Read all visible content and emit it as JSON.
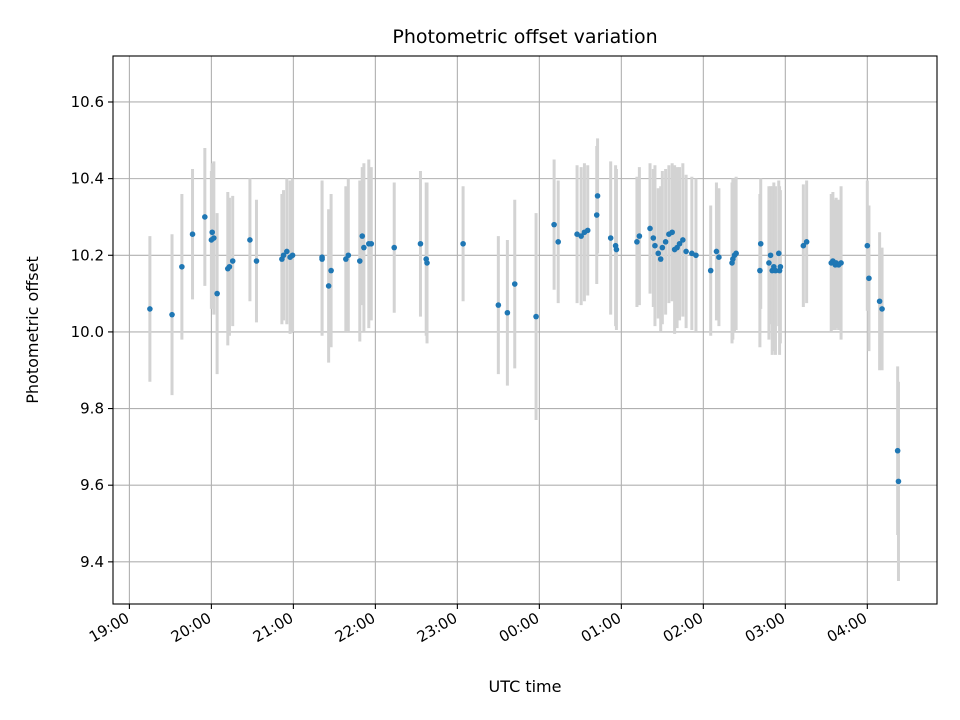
{
  "chart_data": {
    "type": "scatter",
    "title": "Photometric offset variation",
    "xlabel": "UTC time",
    "ylabel": "Photometric offset",
    "x_unit": "hours after 19:00 UTC",
    "xlim": [
      -0.2,
      9.85
    ],
    "ylim": [
      9.29,
      10.72
    ],
    "x_ticks": [
      0,
      1,
      2,
      3,
      4,
      5,
      6,
      7,
      8,
      9
    ],
    "x_tick_labels": [
      "19:00",
      "20:00",
      "21:00",
      "22:00",
      "23:00",
      "00:00",
      "01:00",
      "02:00",
      "03:00",
      "04:00"
    ],
    "y_ticks": [
      9.4,
      9.6,
      9.8,
      10.0,
      10.2,
      10.4,
      10.6
    ],
    "y_tick_labels": [
      "9.4",
      "9.6",
      "9.8",
      "10.0",
      "10.2",
      "10.4",
      "10.6"
    ],
    "grid": true,
    "colors": {
      "points": "#1f77b4",
      "errorbars": "#d3d3d3",
      "grid": "#b0b0b0"
    },
    "series": [
      {
        "x": [
          0.25,
          0.52,
          0.64,
          0.77,
          0.92,
          1.0,
          1.01,
          1.03,
          1.07,
          1.2,
          1.22,
          1.26,
          1.47,
          1.55,
          1.86,
          1.88,
          1.92,
          1.96,
          1.99,
          2.35,
          2.35,
          2.43,
          2.46,
          2.64,
          2.67,
          2.81,
          2.84,
          2.86,
          2.92,
          2.95,
          3.23,
          3.55,
          3.62,
          3.63,
          4.07,
          4.5,
          4.61,
          4.7,
          4.96,
          5.18,
          5.23,
          5.46,
          5.51,
          5.55,
          5.59,
          5.7,
          5.71,
          5.87,
          5.93,
          5.94,
          6.19,
          6.22,
          6.35,
          6.39,
          6.41,
          6.45,
          6.48,
          6.5,
          6.54,
          6.58,
          6.62,
          6.65,
          6.68,
          6.71,
          6.75,
          6.79,
          6.86,
          6.91,
          7.09,
          7.16,
          7.19,
          7.35,
          7.36,
          7.38,
          7.4,
          7.69,
          7.7,
          7.8,
          7.82,
          7.84,
          7.86,
          7.88,
          7.92,
          7.93,
          7.94,
          8.22,
          8.26,
          8.56,
          8.58,
          8.61,
          8.62,
          8.65,
          8.68,
          9.0,
          9.02,
          9.15,
          9.18,
          9.37,
          9.38
        ],
        "y": [
          10.06,
          10.045,
          10.17,
          10.255,
          10.3,
          10.24,
          10.26,
          10.245,
          10.1,
          10.165,
          10.17,
          10.185,
          10.24,
          10.185,
          10.19,
          10.2,
          10.21,
          10.195,
          10.2,
          10.195,
          10.19,
          10.12,
          10.16,
          10.19,
          10.2,
          10.185,
          10.25,
          10.22,
          10.23,
          10.23,
          10.22,
          10.23,
          10.19,
          10.18,
          10.23,
          10.07,
          10.05,
          10.125,
          10.04,
          10.28,
          10.235,
          10.255,
          10.25,
          10.26,
          10.265,
          10.305,
          10.355,
          10.245,
          10.225,
          10.215,
          10.235,
          10.25,
          10.27,
          10.245,
          10.225,
          10.205,
          10.19,
          10.22,
          10.235,
          10.255,
          10.26,
          10.215,
          10.22,
          10.23,
          10.24,
          10.21,
          10.205,
          10.2,
          10.16,
          10.21,
          10.195,
          10.18,
          10.19,
          10.2,
          10.205,
          10.16,
          10.23,
          10.18,
          10.2,
          10.16,
          10.17,
          10.16,
          10.205,
          10.16,
          10.17,
          10.225,
          10.235,
          10.18,
          10.185,
          10.175,
          10.18,
          10.175,
          10.18,
          10.225,
          10.14,
          10.08,
          10.06,
          9.69,
          9.61
        ],
        "yerr": [
          0.19,
          0.21,
          0.19,
          0.17,
          0.18,
          0.18,
          0.18,
          0.2,
          0.21,
          0.2,
          0.18,
          0.17,
          0.16,
          0.16,
          0.17,
          0.17,
          0.19,
          0.2,
          0.2,
          0.2,
          0.2,
          0.2,
          0.2,
          0.19,
          0.2,
          0.21,
          0.18,
          0.22,
          0.22,
          0.2,
          0.17,
          0.19,
          0.2,
          0.21,
          0.15,
          0.18,
          0.19,
          0.22,
          0.27,
          0.17,
          0.16,
          0.18,
          0.18,
          0.18,
          0.17,
          0.18,
          0.15,
          0.2,
          0.21,
          0.21,
          0.17,
          0.18,
          0.17,
          0.18,
          0.21,
          0.17,
          0.19,
          0.2,
          0.19,
          0.18,
          0.18,
          0.22,
          0.21,
          0.2,
          0.2,
          0.2,
          0.2,
          0.2,
          0.17,
          0.18,
          0.18,
          0.21,
          0.21,
          0.2,
          0.2,
          0.2,
          0.17,
          0.2,
          0.18,
          0.22,
          0.22,
          0.22,
          0.19,
          0.22,
          0.2,
          0.16,
          0.16,
          0.18,
          0.18,
          0.17,
          0.17,
          0.17,
          0.2,
          0.17,
          0.19,
          0.18,
          0.16,
          0.22,
          0.26
        ]
      }
    ]
  }
}
